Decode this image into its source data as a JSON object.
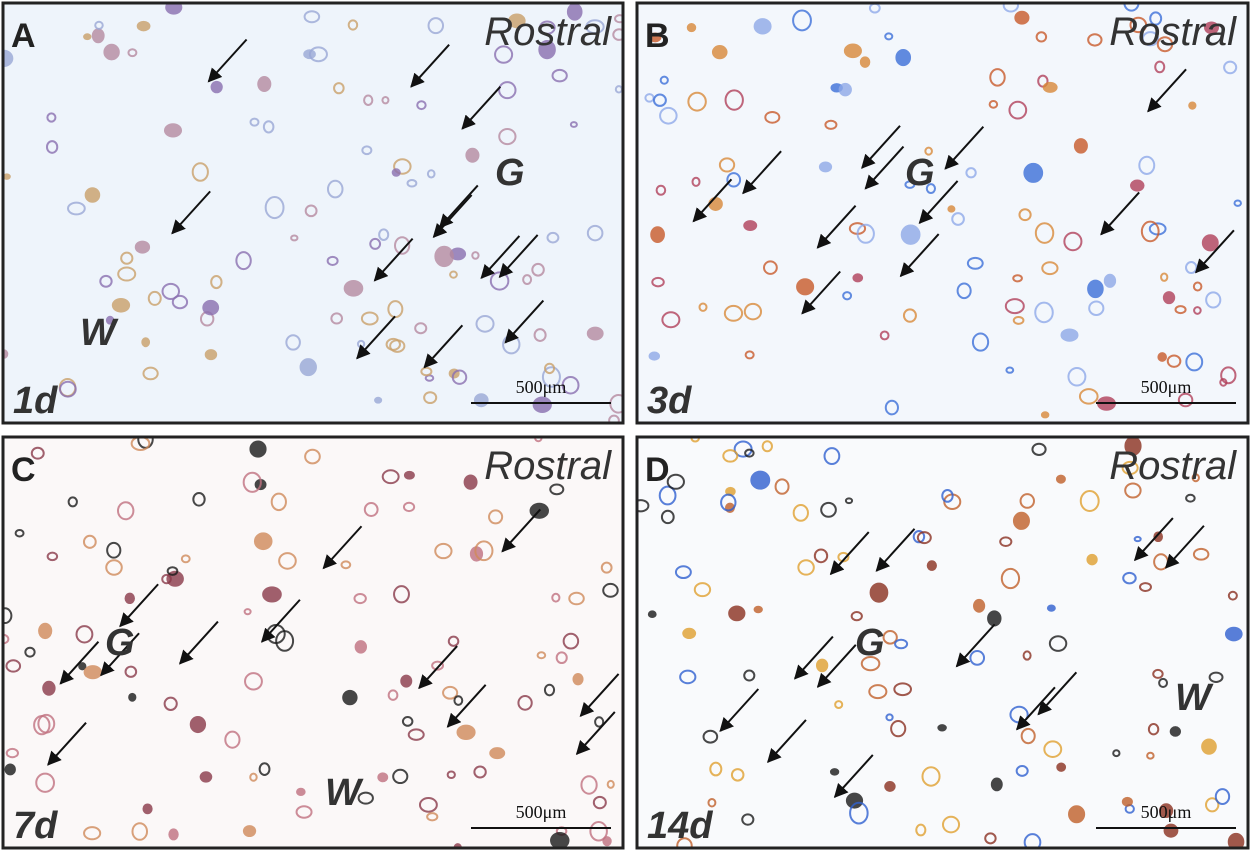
{
  "panels": [
    {
      "letter": "A",
      "orientation": "Rostral",
      "regions": [
        "G",
        "W"
      ],
      "time": "1d",
      "scale_bar": "500μm"
    },
    {
      "letter": "B",
      "orientation": "Rostral",
      "regions": [
        "G"
      ],
      "time": "3d",
      "scale_bar": "500μm"
    },
    {
      "letter": "C",
      "orientation": "Rostral",
      "regions": [
        "G",
        "W"
      ],
      "time": "7d",
      "scale_bar": "500μm"
    },
    {
      "letter": "D",
      "orientation": "Rostral",
      "regions": [
        "G",
        "W"
      ],
      "time": "14d",
      "scale_bar": "500μm"
    }
  ]
}
